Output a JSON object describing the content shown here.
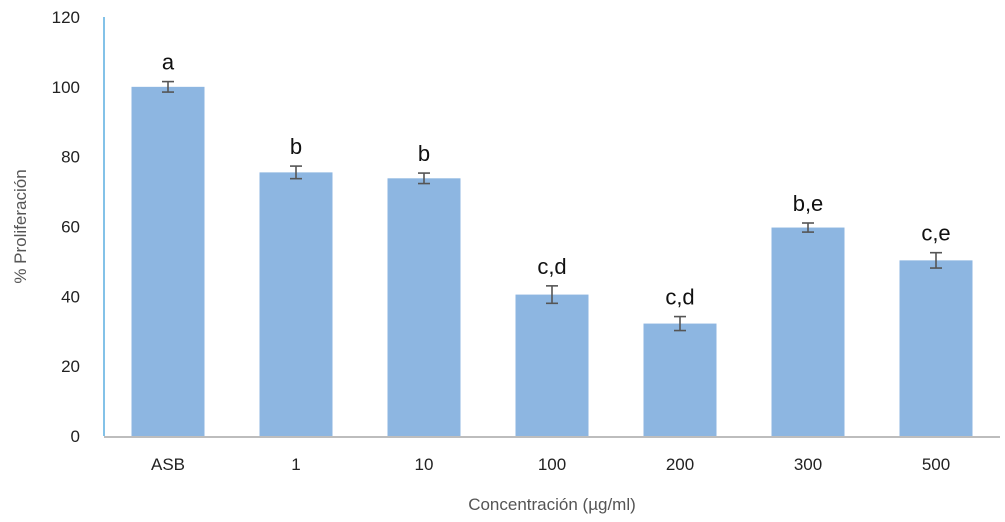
{
  "chart_data": {
    "type": "bar",
    "categories": [
      "ASB",
      "1",
      "10",
      "100",
      "200",
      "300",
      "500"
    ],
    "values": [
      100,
      75.5,
      73.8,
      40.5,
      32.2,
      59.7,
      50.3
    ],
    "errors": [
      1.5,
      1.8,
      1.5,
      2.5,
      2.0,
      1.3,
      2.2
    ],
    "annotations": [
      "a",
      "b",
      "b",
      "c,d",
      "c,d",
      "b,e",
      "c,e"
    ],
    "title": "",
    "xlabel": "Concentración (µg/ml)",
    "ylabel": "% Proliferación",
    "ylim": [
      0,
      120
    ],
    "yticks": [
      0,
      20,
      40,
      60,
      80,
      100,
      120
    ],
    "grid": false,
    "legend": "none",
    "colors": {
      "bar": "#8db6e1",
      "error_bar": "#555555",
      "y_axis": "#5aaee0",
      "x_axis": "#bdbdbd"
    }
  }
}
